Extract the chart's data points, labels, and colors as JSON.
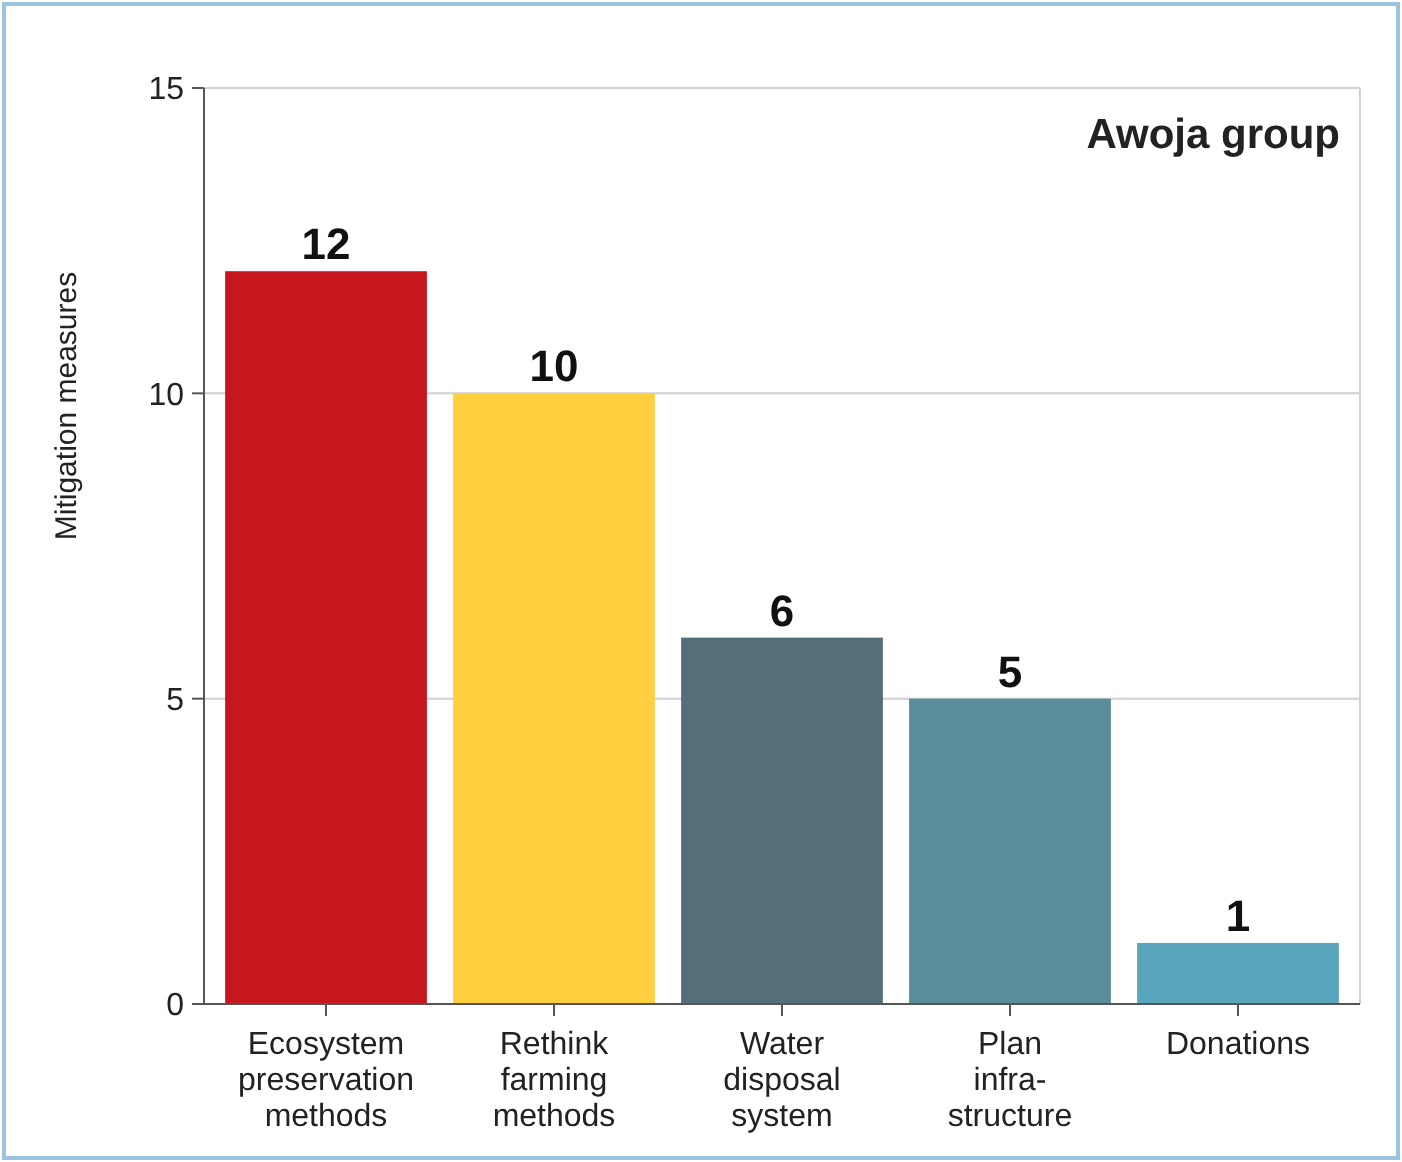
{
  "chart_data": {
    "type": "bar",
    "title": "Awoja group",
    "ylabel": "Mitigation measures",
    "categories": [
      "Ecosystem\npreservation\nmethods",
      "Rethink\nfarming\nmethods",
      "Water\ndisposal\nsystem",
      "Plan\ninfra-\nstructure",
      "Donations"
    ],
    "values": [
      12,
      10,
      6,
      5,
      1
    ],
    "colors": [
      "#c8161e",
      "#fecf3f",
      "#546e7a",
      "#5a8c9c",
      "#5aa7bd"
    ],
    "ylim": [
      0,
      15
    ],
    "yticks": [
      0,
      5,
      10,
      15
    ],
    "grid": "y",
    "data_labels": true
  }
}
